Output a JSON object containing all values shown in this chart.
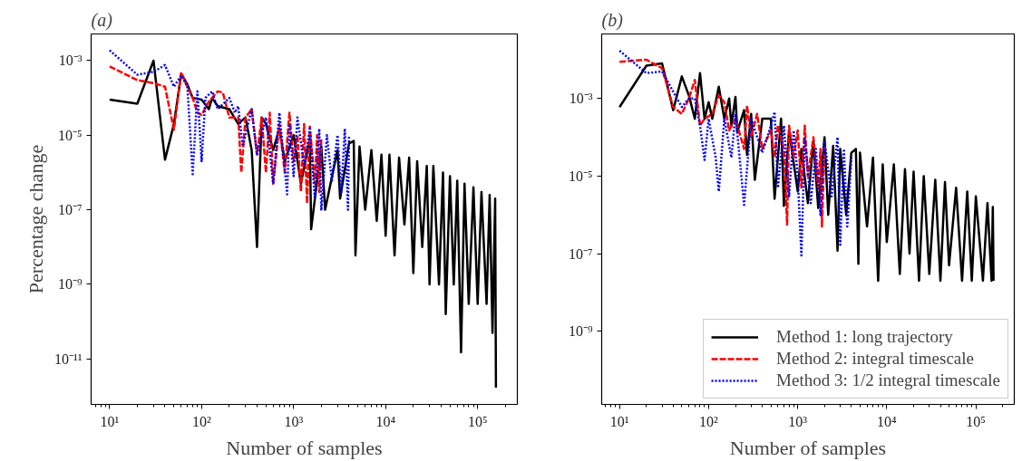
{
  "chart_data": [
    {
      "type": "line",
      "title": "(a)",
      "xlabel": "Number of samples",
      "ylabel": "Percentage change",
      "log": "xy",
      "legend": false,
      "grid": false,
      "xlim": [
        6.3,
        270000
      ],
      "ylim": [
        6e-13,
        0.0052
      ],
      "xticks": [
        {
          "value": 10,
          "label": "10¹"
        },
        {
          "value": 100,
          "label": "10²"
        },
        {
          "value": 1000,
          "label": "10³"
        },
        {
          "value": 10000,
          "label": "10⁴"
        },
        {
          "value": 100000,
          "label": "10⁵"
        }
      ],
      "yticks": [
        {
          "value": 0.001,
          "label": "10⁻³"
        },
        {
          "value": 1e-05,
          "label": "10⁻⁵"
        },
        {
          "value": 1e-07,
          "label": "10⁻⁷"
        },
        {
          "value": 1e-09,
          "label": "10⁻⁹"
        },
        {
          "value": 1e-11,
          "label": "10⁻¹¹"
        }
      ],
      "series": [
        {
          "color": "#000000",
          "line_style": "solid",
          "x": [
            10,
            20,
            30,
            40,
            50,
            60,
            70,
            80,
            100,
            120,
            130,
            150,
            200,
            250,
            300,
            350,
            400,
            450,
            500,
            600,
            700,
            800,
            1000,
            1200,
            1500,
            1550,
            2000,
            2200,
            3000,
            3200,
            4000,
            4500,
            4700,
            5200,
            6000,
            7000,
            8000,
            9000,
            10000,
            11000,
            12500,
            14000,
            16000,
            18000,
            20000,
            22000,
            25000,
            28000,
            30000,
            33000,
            38000,
            42000,
            45000,
            50000,
            55000,
            60000,
            66000,
            72000,
            80000,
            90000,
            100000,
            110000,
            125000,
            135000,
            145000,
            155000,
            158000
          ],
          "values": [
            9e-05,
            7e-05,
            0.001,
            2.2e-06,
            2e-05,
            0.00044,
            0.00023,
            0.0001,
            9e-05,
            5e-05,
            0.0001,
            6e-05,
            5e-05,
            2e-05,
            3e-05,
            4e-06,
            1e-08,
            3e-05,
            2e-05,
            4e-06,
            1.5e-05,
            2e-06,
            1e-05,
            5e-07,
            8e-06,
            3e-08,
            5e-06,
            1e-07,
            4e-06,
            2e-07,
            6e-06,
            7e-06,
            6e-09,
            5e-06,
            1e-07,
            4e-06,
            5e-08,
            3e-06,
            2e-08,
            3e-06,
            6e-09,
            2.5e-06,
            4e-08,
            2.5e-06,
            2e-09,
            2e-06,
            1e-08,
            1.5e-06,
            1e-09,
            1.5e-06,
            1e-09,
            1e-06,
            1.6e-10,
            8e-07,
            1e-09,
            6e-07,
            1.5e-11,
            5e-07,
            3e-10,
            4e-07,
            3e-10,
            3e-07,
            3e-10,
            2.5e-07,
            5e-11,
            2e-07,
            1.7e-12
          ]
        },
        {
          "color": "#ff0000",
          "line_style": "dashed",
          "x": [
            10,
            20,
            30,
            40,
            50,
            60,
            70,
            80,
            90,
            100,
            120,
            150,
            170,
            200,
            250,
            270,
            300,
            350,
            400,
            450,
            500,
            550,
            600,
            700,
            800,
            900,
            1000,
            1100,
            1200,
            1300,
            1400,
            1500,
            1700,
            1800,
            1900,
            2000
          ],
          "values": [
            0.0007,
            0.0003,
            0.00025,
            0.0002,
            1.4e-05,
            0.00049,
            0.0002,
            0.0001,
            4e-05,
            3.5e-05,
            8e-05,
            0.00015,
            0.00014,
            3e-05,
            3e-05,
            1e-06,
            3e-05,
            5e-05,
            3e-06,
            3e-05,
            1e-06,
            4e-05,
            5e-07,
            2e-05,
            1e-06,
            4e-05,
            2e-06,
            1e-05,
            3e-07,
            2e-05,
            1.5e-07,
            1.7e-05,
            5e-07,
            1e-05,
            3e-07,
            8e-06
          ]
        },
        {
          "color": "#0000ff",
          "line_style": "dotted",
          "x": [
            10,
            20,
            30,
            40,
            50,
            60,
            70,
            80,
            90,
            100,
            110,
            130,
            150,
            200,
            230,
            250,
            280,
            350,
            400,
            500,
            600,
            700,
            850,
            900,
            1000,
            1100,
            1300,
            1500,
            1700,
            1900,
            2000,
            2300,
            2600,
            3000,
            3300,
            3600,
            3900,
            4000
          ],
          "values": [
            0.0019,
            0.00042,
            0.0005,
            0.00076,
            0.0002,
            0.0004,
            0.0002,
            9e-07,
            0.00015,
            2e-06,
            0.0001,
            0.00015,
            5e-05,
            0.0001,
            4e-05,
            6e-05,
            5e-06,
            5e-05,
            3e-06,
            3e-05,
            5e-07,
            4e-05,
            2.6e-07,
            2e-05,
            8e-07,
            3e-05,
            1.5e-06,
            1.5e-05,
            2e-07,
            1.5e-05,
            9.5e-08,
            1e-05,
            6e-07,
            1e-05,
            3e-07,
            1.5e-05,
            1e-07,
            1e-05
          ]
        }
      ]
    },
    {
      "type": "line",
      "title": "(b)",
      "xlabel": "Number of samples",
      "log": "xy",
      "legend": "bottom right",
      "grid": false,
      "xlim": [
        6.3,
        270000
      ],
      "ylim": [
        1.3e-11,
        0.046
      ],
      "xticks": [
        {
          "value": 10,
          "label": "10¹"
        },
        {
          "value": 100,
          "label": "10²"
        },
        {
          "value": 1000,
          "label": "10³"
        },
        {
          "value": 10000,
          "label": "10⁴"
        },
        {
          "value": 100000,
          "label": "10⁵"
        }
      ],
      "yticks": [
        {
          "value": 0.001,
          "label": "10⁻³"
        },
        {
          "value": 1e-05,
          "label": "10⁻⁵"
        },
        {
          "value": 1e-07,
          "label": "10⁻⁷"
        },
        {
          "value": 1e-09,
          "label": "10⁻⁹"
        }
      ],
      "series": [
        {
          "name": "Method 1: long trajectory",
          "color": "#000000",
          "line_style": "solid",
          "x": [
            10,
            20,
            30,
            40,
            50,
            60,
            70,
            80,
            90,
            100,
            110,
            130,
            150,
            170,
            180,
            200,
            210,
            250,
            270,
            300,
            330,
            400,
            500,
            550,
            650,
            700,
            800,
            1000,
            1100,
            1300,
            1500,
            1700,
            2000,
            2200,
            2500,
            2800,
            3000,
            3500,
            4000,
            4500,
            4800,
            5000,
            6000,
            7000,
            8000,
            9000,
            10000,
            12000,
            14000,
            16000,
            18000,
            20000,
            23000,
            26000,
            30000,
            35000,
            40000,
            45000,
            50000,
            60000,
            70000,
            80000,
            90000,
            100000,
            120000,
            135000,
            150000,
            155000,
            158000
          ],
          "values": [
            0.0006,
            0.007,
            0.008,
            0.0005,
            0.0037,
            0.0012,
            0.0003,
            0.0045,
            0.0003,
            0.0008,
            0.0003,
            0.002,
            0.0003,
            0.001,
            0.0002,
            0.0011,
            0.00014,
            0.0005,
            3.5e-05,
            0.0004,
            8e-06,
            0.0003,
            0.0003,
            2.6e-06,
            0.0003,
            1.7e-06,
            0.00015,
            4e-06,
            5e-05,
            2e-06,
            8e-05,
            1.5e-06,
            0.0001,
            1e-06,
            6e-05,
            1.2e-07,
            5e-05,
            1e-06,
            4e-05,
            5e-05,
            5.5e-08,
            4e-05,
            5e-07,
            3e-05,
            2e-08,
            2e-05,
            2e-07,
            2e-05,
            3e-08,
            1.5e-05,
            1e-07,
            1.3e-05,
            2e-08,
            1e-05,
            3e-08,
            8e-06,
            2e-08,
            7e-06,
            5e-08,
            5e-06,
            2e-08,
            4e-06,
            2e-08,
            3e-06,
            2e-08,
            2e-06,
            2e-08,
            1.6e-06,
            2e-08
          ]
        },
        {
          "name": "Method 2: integral timescale",
          "color": "#ff0000",
          "line_style": "dashed",
          "x": [
            10,
            20,
            30,
            40,
            50,
            60,
            70,
            80,
            90,
            110,
            130,
            150,
            170,
            200,
            250,
            270,
            300,
            350,
            400,
            500,
            550,
            600,
            700,
            760,
            800,
            900,
            1000,
            1100,
            1200,
            1300,
            1500,
            1700,
            1800,
            1870,
            2000
          ],
          "values": [
            0.0088,
            0.01,
            0.006,
            0.0006,
            0.0004,
            0.001,
            0.003,
            0.0002,
            0.0003,
            0.0004,
            0.0012,
            0.0008,
            0.00015,
            0.0003,
            5e-05,
            0.00065,
            0.0001,
            0.0004,
            5e-05,
            0.00015,
            3e-05,
            0.0002,
            5e-05,
            5.6e-07,
            0.0002,
            3e-05,
            0.00015,
            5e-06,
            0.0002,
            1e-05,
            0.0001,
            5e-06,
            5e-05,
            5e-07,
            6e-05
          ]
        },
        {
          "name": "Method 3: 1/2 integral timescale",
          "color": "#0000ff",
          "line_style": "dotted",
          "x": [
            10,
            20,
            30,
            40,
            50,
            60,
            70,
            80,
            90,
            100,
            120,
            130,
            150,
            180,
            200,
            250,
            300,
            400,
            500,
            550,
            600,
            700,
            800,
            900,
            1000,
            1100,
            1200,
            1400,
            1600,
            1800,
            2000,
            2400,
            2800,
            3000,
            3300,
            3600,
            4000
          ],
          "values": [
            0.017,
            0.0045,
            0.005,
            0.0015,
            0.0006,
            0.001,
            0.001,
            0.0002,
            2.6e-05,
            0.0003,
            3e-05,
            4e-06,
            0.0003,
            3e-05,
            0.0004,
            1.8e-06,
            0.0003,
            4e-05,
            0.0002,
            0.00045,
            5e-06,
            0.0002,
            3e-06,
            0.00015,
            1e-05,
            9e-08,
            0.0001,
            2e-06,
            5e-05,
            1e-06,
            8e-05,
            3e-06,
            0.0001,
            1.7e-07,
            5e-05,
            5e-07,
            3e-05
          ]
        }
      ]
    }
  ]
}
